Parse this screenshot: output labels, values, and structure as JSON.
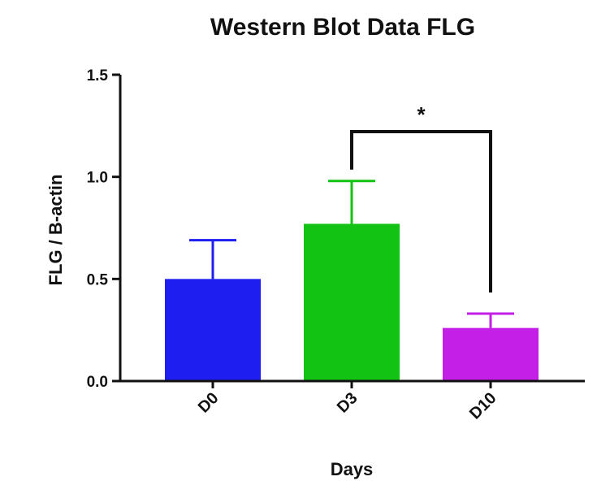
{
  "chart_data": {
    "type": "bar",
    "title": "Western Blot Data FLG",
    "xlabel": "Days",
    "ylabel": "FLG  / B-actin",
    "categories": [
      "D0",
      "D3",
      "D10"
    ],
    "series": [
      {
        "values": [
          0.5,
          0.77,
          0.26
        ],
        "error_upper": [
          0.69,
          0.98,
          0.33
        ],
        "colors": [
          "#1e1ef0",
          "#13c313",
          "#c41fe6"
        ]
      }
    ],
    "ylim": [
      0.0,
      1.5
    ],
    "yticks": [
      "0.0",
      "0.5",
      "1.0",
      "1.5"
    ],
    "grid": false,
    "legend": "none",
    "annotations": [
      {
        "type": "significance-bracket",
        "from": "D3",
        "to": "D10",
        "label": "*"
      }
    ]
  }
}
